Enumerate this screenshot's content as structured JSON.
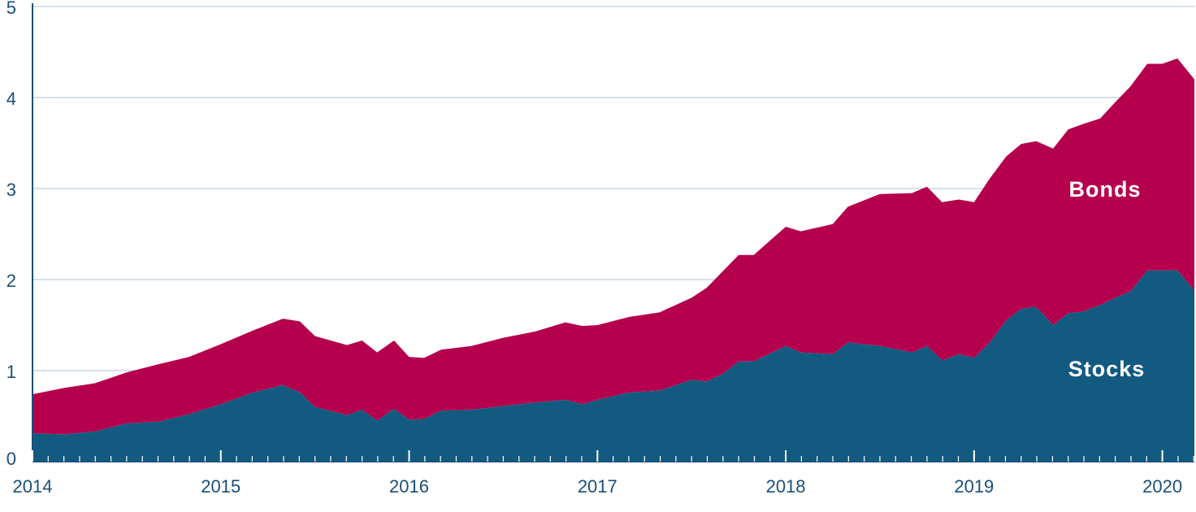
{
  "chart_data": {
    "type": "area",
    "stacked": true,
    "title": "",
    "xlabel": "",
    "ylabel": "",
    "ylim": [
      0,
      5
    ],
    "yticks": [
      "0",
      "1",
      "2",
      "3",
      "4",
      "5"
    ],
    "xlim": [
      2014.0,
      2020.17
    ],
    "xticks": [
      "2014",
      "2015",
      "2016",
      "2017",
      "2018",
      "2019",
      "2020"
    ],
    "grid": true,
    "colors": {
      "stocks": "#135a80",
      "bonds": "#b5004e",
      "axis": "#1a4f7a",
      "grid": "#c9d6e3"
    },
    "x": [
      2014.0,
      2014.17,
      2014.33,
      2014.5,
      2014.67,
      2014.83,
      2015.0,
      2015.17,
      2015.33,
      2015.42,
      2015.5,
      2015.67,
      2015.75,
      2015.83,
      2015.92,
      2016.0,
      2016.08,
      2016.17,
      2016.33,
      2016.5,
      2016.67,
      2016.83,
      2016.92,
      2017.0,
      2017.17,
      2017.33,
      2017.5,
      2017.58,
      2017.67,
      2017.75,
      2017.83,
      2018.0,
      2018.08,
      2018.25,
      2018.33,
      2018.5,
      2018.67,
      2018.75,
      2018.83,
      2018.92,
      2019.0,
      2019.08,
      2019.17,
      2019.25,
      2019.33,
      2019.42,
      2019.5,
      2019.58,
      2019.67,
      2019.75,
      2019.83,
      2019.92,
      2020.0,
      2020.08,
      2020.17
    ],
    "series": [
      {
        "name": "Stocks",
        "values": [
          0.31,
          0.3,
          0.33,
          0.42,
          0.44,
          0.52,
          0.63,
          0.76,
          0.84,
          0.76,
          0.6,
          0.51,
          0.57,
          0.45,
          0.58,
          0.46,
          0.47,
          0.56,
          0.57,
          0.61,
          0.65,
          0.68,
          0.63,
          0.68,
          0.76,
          0.78,
          0.9,
          0.88,
          0.97,
          1.1,
          1.1,
          1.27,
          1.2,
          1.18,
          1.31,
          1.27,
          1.2,
          1.27,
          1.11,
          1.18,
          1.14,
          1.3,
          1.55,
          1.68,
          1.7,
          1.5,
          1.63,
          1.65,
          1.72,
          1.8,
          1.87,
          2.1,
          2.1,
          2.1,
          1.88
        ]
      },
      {
        "name": "Bonds",
        "values": [
          0.43,
          0.51,
          0.53,
          0.56,
          0.63,
          0.63,
          0.66,
          0.68,
          0.73,
          0.78,
          0.78,
          0.77,
          0.76,
          0.75,
          0.75,
          0.69,
          0.67,
          0.67,
          0.7,
          0.75,
          0.78,
          0.85,
          0.86,
          0.82,
          0.83,
          0.86,
          0.9,
          1.03,
          1.13,
          1.17,
          1.17,
          1.31,
          1.33,
          1.43,
          1.49,
          1.67,
          1.75,
          1.75,
          1.74,
          1.7,
          1.71,
          1.8,
          1.8,
          1.81,
          1.82,
          1.94,
          2.02,
          2.06,
          2.05,
          2.15,
          2.25,
          2.27,
          2.27,
          2.33,
          2.32
        ]
      }
    ]
  }
}
